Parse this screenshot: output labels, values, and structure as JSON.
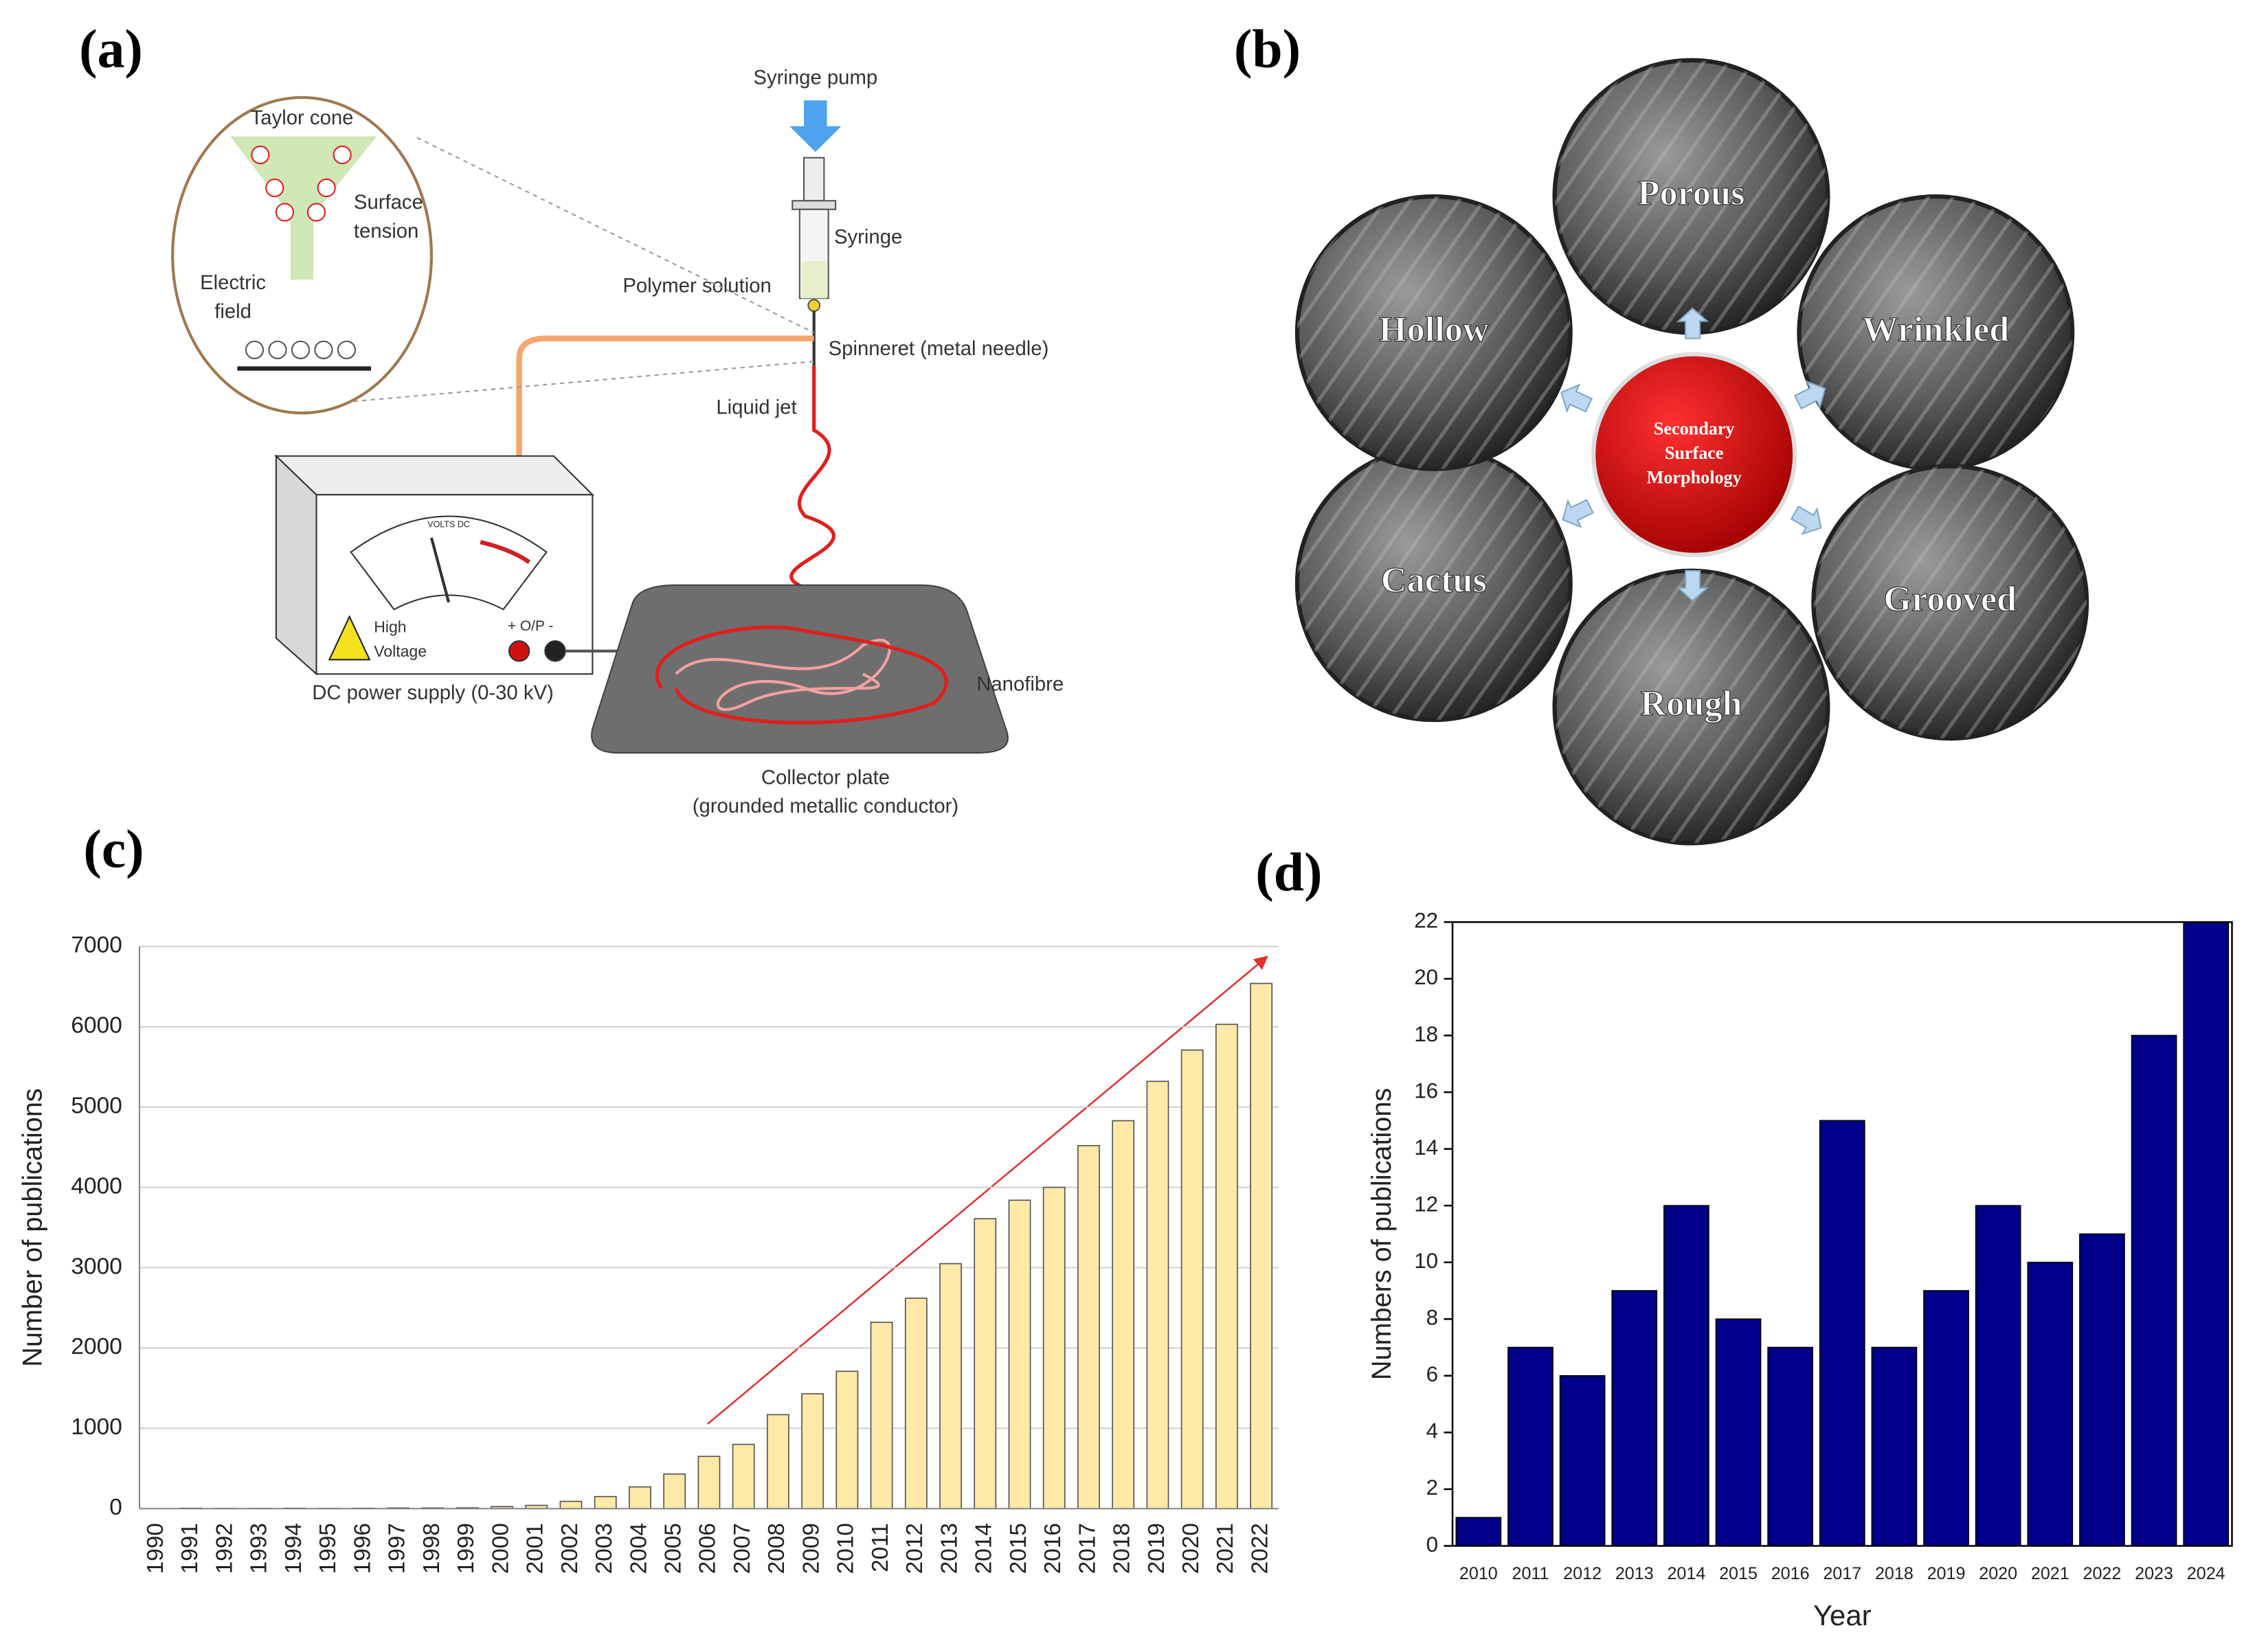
{
  "panels": [
    "(a)",
    "(b)",
    "(c)",
    "(d)"
  ],
  "diagram_a": {
    "syringe_pump": "Syringe pump",
    "syringe": "Syringe",
    "polymer_solution": "Polymer solution",
    "spinneret": "Spinneret (metal needle)",
    "liquid_jet": "Liquid jet",
    "taylor_cone": "Taylor cone",
    "surface_tension": [
      "Surface",
      "tension"
    ],
    "electric_field": [
      "Electric",
      "field"
    ],
    "volts_dc": "VOLTS DC",
    "output": "+ O/P -",
    "high_voltage": [
      "High",
      "Voltage"
    ],
    "power_supply": "DC power supply (0-30 kV)",
    "nanofibre": "Nanofibre",
    "collector": [
      "Collector plate",
      "(grounded metallic conductor)"
    ]
  },
  "diagram_b": {
    "center": [
      "Secondary",
      "Surface",
      "Morphology"
    ],
    "morphologies": [
      "Porous",
      "Wrinkled",
      "Grooved",
      "Rough",
      "Cactus",
      "Hollow"
    ]
  },
  "chart_data": [
    {
      "type": "bar",
      "ylabel": "Number of publications",
      "categories": [
        "1990",
        "1991",
        "1992",
        "1993",
        "1994",
        "1995",
        "1996",
        "1997",
        "1998",
        "1999",
        "2000",
        "2001",
        "2002",
        "2003",
        "2004",
        "2005",
        "2006",
        "2007",
        "2008",
        "2009",
        "2010",
        "2011",
        "2012",
        "2013",
        "2014",
        "2015",
        "2016",
        "2017",
        "2018",
        "2019",
        "2020",
        "2021",
        "2022"
      ],
      "values": [
        0,
        5,
        3,
        3,
        5,
        3,
        5,
        8,
        8,
        10,
        25,
        40,
        90,
        150,
        270,
        430,
        650,
        800,
        1170,
        1430,
        1710,
        2320,
        2620,
        3050,
        3610,
        3840,
        4000,
        4520,
        4830,
        5320,
        5710,
        6030,
        6540
      ],
      "color": "#ffe9a6",
      "edgecolor": "#555555",
      "ylim": [
        0,
        7000
      ],
      "yticks": [
        0,
        1000,
        2000,
        3000,
        4000,
        5000,
        6000,
        7000
      ],
      "grid": true
    },
    {
      "type": "bar",
      "xlabel": "Year",
      "ylabel": "Numbers of publications",
      "categories": [
        "2010",
        "2011",
        "2012",
        "2013",
        "2014",
        "2015",
        "2016",
        "2017",
        "2018",
        "2019",
        "2020",
        "2021",
        "2022",
        "2023",
        "2024"
      ],
      "values": [
        1,
        7,
        6,
        9,
        12,
        8,
        7,
        15,
        7,
        9,
        12,
        10,
        11,
        18,
        22
      ],
      "color": "#00008b",
      "edgecolor": "#000000",
      "ylim": [
        0,
        22
      ],
      "yticks": [
        0,
        2,
        4,
        6,
        8,
        10,
        12,
        14,
        16,
        18,
        20,
        22
      ],
      "grid": false
    }
  ]
}
